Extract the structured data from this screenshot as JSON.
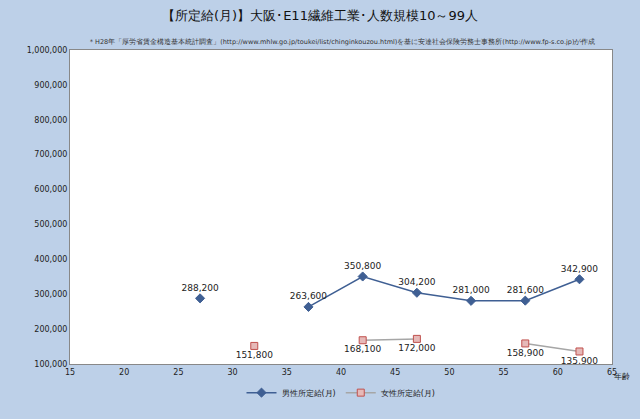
{
  "chart_data": {
    "type": "line",
    "title": "【所定給(月)】大阪･E11繊維工業･人数規模10～99人",
    "subtitle": "＊H28年「厚労省賃金構造基本統計調査」(http://www.mhlw.go.jp/toukei/list/chinginkouzou.html)を基に安達社会保険労務士事務所(http://www.fp-s.co.jp)が作成",
    "xlabel": "年齢",
    "x": [
      27,
      32,
      37,
      42,
      47,
      52,
      57,
      62
    ],
    "series": [
      {
        "name": "男性所定給(月)",
        "color": "#3f5f93",
        "marker": "diamond",
        "values": [
          288200,
          null,
          263600,
          350800,
          304200,
          281000,
          281600,
          342900
        ],
        "value_labels": [
          "288,200",
          null,
          "263,600",
          "350,800",
          "304,200",
          "281,000",
          "281,600",
          "342,900"
        ]
      },
      {
        "name": "女性所定給(月)",
        "color": "#c0504d",
        "marker": "square",
        "values": [
          null,
          151800,
          null,
          168100,
          172000,
          null,
          158900,
          135900
        ],
        "value_labels": [
          null,
          "151,800",
          null,
          "168,100",
          "172,000",
          null,
          "158,900",
          "135,900"
        ]
      }
    ],
    "xlim": [
      15,
      65
    ],
    "xticks": [
      15,
      20,
      25,
      30,
      35,
      40,
      45,
      50,
      55,
      60,
      65
    ],
    "ylim": [
      100000,
      1000000
    ],
    "yticks": [
      {
        "value": 100000,
        "label": "100,000"
      },
      {
        "value": 200000,
        "label": "200,000"
      },
      {
        "value": 300000,
        "label": "300,000"
      },
      {
        "value": 400000,
        "label": "400,000"
      },
      {
        "value": 500000,
        "label": "500,000"
      },
      {
        "value": 600000,
        "label": "600,000"
      },
      {
        "value": 700000,
        "label": "700,000"
      },
      {
        "value": 800000,
        "label": "800,000"
      },
      {
        "value": 900000,
        "label": "900,000"
      },
      {
        "value": 1000000,
        "label": "1,000,000"
      }
    ],
    "grid": false,
    "legend": "bottom",
    "data_labels": true
  }
}
